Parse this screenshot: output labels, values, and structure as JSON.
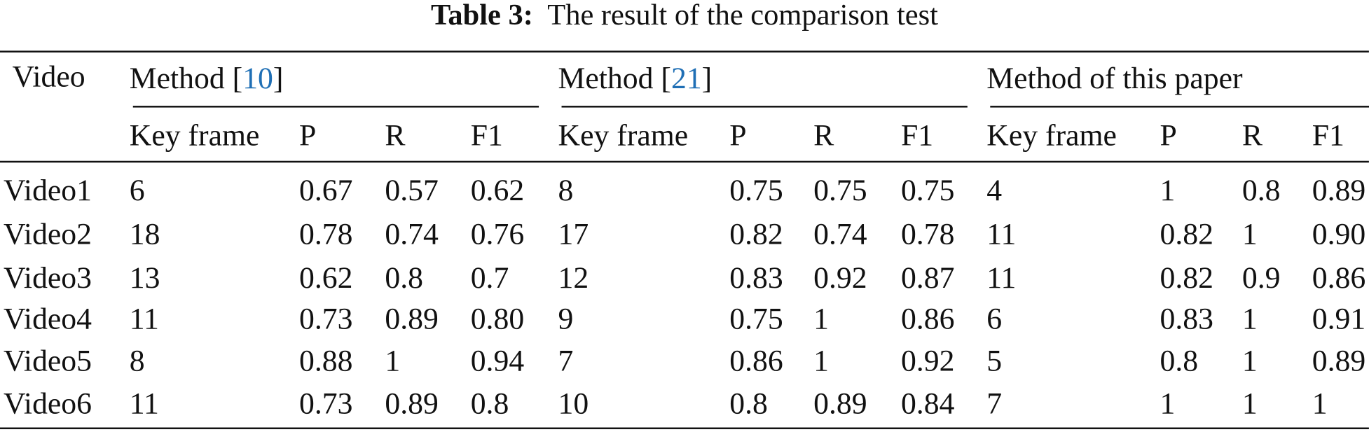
{
  "caption": {
    "label": "Table 3:",
    "text": "The result of the comparison test"
  },
  "table": {
    "header": "Video",
    "groups": [
      {
        "text": "Method [",
        "ref": "10",
        "close": "]"
      },
      {
        "text": "Method [",
        "ref": "21",
        "close": "]"
      },
      {
        "text": "Method of this paper"
      }
    ],
    "columns": [
      "Key frame",
      "P",
      "R",
      "F1",
      "Key frame",
      "P",
      "R",
      "F1",
      "Key frame",
      "P",
      "R",
      "F1"
    ],
    "rows": [
      [
        "Video1",
        "6",
        "0.67",
        "0.57",
        "0.62",
        "8",
        "0.75",
        "0.75",
        "0.75",
        "4",
        "1",
        "0.8",
        "0.89"
      ],
      [
        "Video2",
        "18",
        "0.78",
        "0.74",
        "0.76",
        "17",
        "0.82",
        "0.74",
        "0.78",
        "11",
        "0.82",
        "1",
        "0.90"
      ],
      [
        "Video3",
        "13",
        "0.62",
        "0.8",
        "0.7",
        "12",
        "0.83",
        "0.92",
        "0.87",
        "11",
        "0.82",
        "0.9",
        "0.86"
      ],
      [
        "Video4",
        "11",
        "0.73",
        "0.89",
        "0.80",
        "9",
        "0.75",
        "1",
        "0.86",
        "6",
        "0.83",
        "1",
        "0.91"
      ],
      [
        "Video5",
        "8",
        "0.88",
        "1",
        "0.94",
        "7",
        "0.86",
        "1",
        "0.92",
        "5",
        "0.8",
        "1",
        "0.89"
      ],
      [
        "Video6",
        "11",
        "0.73",
        "0.89",
        "0.8",
        "10",
        "0.8",
        "0.89",
        "0.84",
        "7",
        "1",
        "1",
        "1"
      ]
    ]
  }
}
